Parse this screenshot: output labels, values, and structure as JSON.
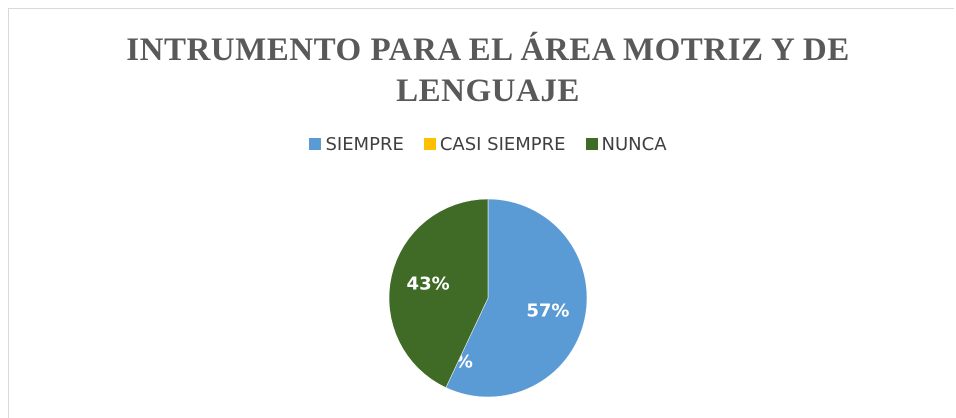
{
  "chart_data": {
    "type": "pie",
    "title": "INTRUMENTO PARA EL ÁREA MOTRIZ Y DE LENGUAJE",
    "categories": [
      "SIEMPRE",
      "CASI SIEMPRE",
      "NUNCA"
    ],
    "values": [
      57,
      0,
      43
    ],
    "value_labels": [
      "57%",
      "0%",
      "43%"
    ],
    "colors": [
      "#5b9bd5",
      "#ffc000",
      "#3f6b26"
    ],
    "legend": "top"
  }
}
